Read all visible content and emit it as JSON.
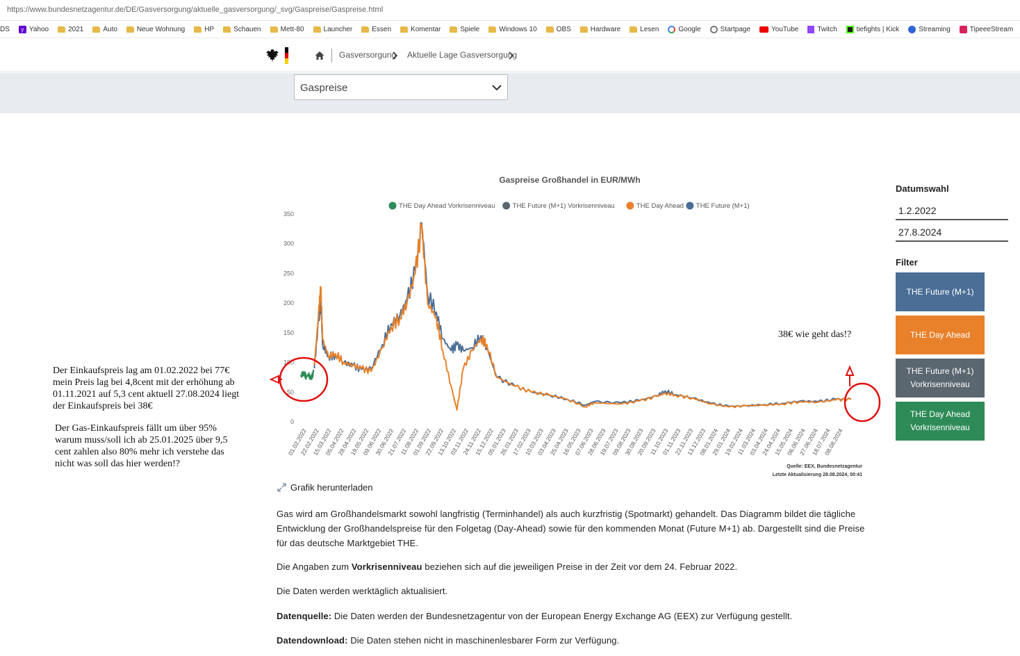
{
  "browser": {
    "url": "https://www.bundesnetzagentur.de/DE/Gasversorgung/aktuelle_gasversorgung/_svg/Gaspreise/Gaspreise.html",
    "bookmarks": [
      {
        "label": "DS",
        "icon": "none"
      },
      {
        "label": "Yahoo",
        "icon": "yahoo"
      },
      {
        "label": "2021",
        "icon": "folder"
      },
      {
        "label": "Auto",
        "icon": "folder"
      },
      {
        "label": "Neue Wohnung",
        "icon": "folder"
      },
      {
        "label": "HP",
        "icon": "folder"
      },
      {
        "label": "Schauen",
        "icon": "folder"
      },
      {
        "label": "Mett-80",
        "icon": "folder"
      },
      {
        "label": "Launcher",
        "icon": "folder"
      },
      {
        "label": "Essen",
        "icon": "folder"
      },
      {
        "label": "Komentar",
        "icon": "folder"
      },
      {
        "label": "Spiele",
        "icon": "folder"
      },
      {
        "label": "Windows 10",
        "icon": "folder"
      },
      {
        "label": "OBS",
        "icon": "folder"
      },
      {
        "label": "Hardware",
        "icon": "folder"
      },
      {
        "label": "Lesen",
        "icon": "folder"
      },
      {
        "label": "Google",
        "icon": "google"
      },
      {
        "label": "Startpage",
        "icon": "search"
      },
      {
        "label": "YouTube",
        "icon": "youtube"
      },
      {
        "label": "Twitch",
        "icon": "twitch"
      },
      {
        "label": "tiefights | Kick",
        "icon": "kick"
      },
      {
        "label": "Streaming",
        "icon": "stream"
      },
      {
        "label": "TipeeeStream",
        "icon": "tipeee"
      }
    ]
  },
  "header": {
    "breadcrumbs": [
      "Gasversorgung",
      "Aktuelle Lage Gasversorgung"
    ],
    "flag_colors": [
      "#000000",
      "#dd0000",
      "#ffce00"
    ]
  },
  "dropdown": {
    "selected": "Gaspreise"
  },
  "chart_data": {
    "type": "line",
    "title": "Gaspreise Großhandel in EUR/MWh",
    "ylim": [
      0,
      350
    ],
    "yticks": [
      0,
      50,
      100,
      150,
      200,
      250,
      300,
      350
    ],
    "x_tick_labels": [
      "01.02.2022",
      "22.02.2022",
      "15.03.2022",
      "05.04.2022",
      "28.04.2022",
      "19.05.2022",
      "09.06.2022",
      "30.06.2022",
      "21.07.2022",
      "11.08.2022",
      "01.09.2022",
      "22.09.2022",
      "13.10.2022",
      "03.11.2022",
      "24.11.2022",
      "15.12.2022",
      "05.01.2023",
      "26.01.2023",
      "17.02.2023",
      "10.03.2023",
      "03.04.2023",
      "25.04.2023",
      "16.05.2023",
      "07.06.2023",
      "28.06.2023",
      "19.07.2023",
      "09.08.2023",
      "30.08.2023",
      "20.09.2023",
      "11.10.2023",
      "01.11.2023",
      "22.11.2023",
      "13.12.2023",
      "08.01.2024",
      "29.01.2024",
      "19.02.2024",
      "11.03.2024",
      "03.04.2024",
      "24.04.2024",
      "15.05.2024",
      "06.06.2024",
      "27.06.2024",
      "18.07.2024",
      "08.08.2024"
    ],
    "x_range": [
      "01.02.2022",
      "27.08.2024"
    ],
    "legend_position": "top",
    "grid": false,
    "series": [
      {
        "name": "THE Day Ahead Vorkrisenniveau",
        "color": "#2e8b57",
        "points": [
          [
            "01.02.2022",
            79
          ],
          [
            "07.02.2022",
            82
          ],
          [
            "10.02.2022",
            75
          ],
          [
            "14.02.2022",
            80
          ],
          [
            "18.02.2022",
            72
          ],
          [
            "23.02.2022",
            84
          ]
        ]
      },
      {
        "name": "THE Future (M+1) Vorkrisenniveau",
        "color": "#5a6670",
        "points": []
      },
      {
        "name": "THE Day Ahead",
        "color": "#e8812a",
        "points": [
          [
            "24.02.2022",
            95
          ],
          [
            "03.03.2022",
            180
          ],
          [
            "07.03.2022",
            227
          ],
          [
            "10.03.2022",
            140
          ],
          [
            "20.03.2022",
            110
          ],
          [
            "01.04.2022",
            115
          ],
          [
            "15.04.2022",
            100
          ],
          [
            "01.05.2022",
            95
          ],
          [
            "15.05.2022",
            90
          ],
          [
            "01.06.2022",
            85
          ],
          [
            "20.06.2022",
            125
          ],
          [
            "05.07.2022",
            160
          ],
          [
            "20.07.2022",
            175
          ],
          [
            "01.08.2022",
            200
          ],
          [
            "15.08.2022",
            250
          ],
          [
            "26.08.2022",
            330
          ],
          [
            "05.09.2022",
            200
          ],
          [
            "20.09.2022",
            175
          ],
          [
            "01.10.2022",
            120
          ],
          [
            "15.10.2022",
            60
          ],
          [
            "25.10.2022",
            20
          ],
          [
            "05.11.2022",
            90
          ],
          [
            "20.11.2022",
            120
          ],
          [
            "05.12.2022",
            140
          ],
          [
            "15.12.2022",
            130
          ],
          [
            "01.01.2023",
            75
          ],
          [
            "01.02.2023",
            60
          ],
          [
            "01.03.2023",
            50
          ],
          [
            "01.04.2023",
            45
          ],
          [
            "01.05.2023",
            38
          ],
          [
            "01.06.2023",
            25
          ],
          [
            "15.06.2023",
            32
          ],
          [
            "01.08.2023",
            30
          ],
          [
            "01.09.2023",
            35
          ],
          [
            "01.10.2023",
            43
          ],
          [
            "15.10.2023",
            48
          ],
          [
            "01.11.2023",
            45
          ],
          [
            "01.12.2023",
            40
          ],
          [
            "01.01.2024",
            30
          ],
          [
            "01.02.2024",
            25
          ],
          [
            "01.03.2024",
            27
          ],
          [
            "01.04.2024",
            28
          ],
          [
            "01.05.2024",
            30
          ],
          [
            "01.06.2024",
            34
          ],
          [
            "01.07.2024",
            33
          ],
          [
            "01.08.2024",
            37
          ],
          [
            "27.08.2024",
            38
          ]
        ]
      },
      {
        "name": "THE Future (M+1)",
        "color": "#4a6e96",
        "points": [
          [
            "24.02.2022",
            90
          ],
          [
            "03.03.2022",
            170
          ],
          [
            "07.03.2022",
            205
          ],
          [
            "10.03.2022",
            130
          ],
          [
            "20.03.2022",
            110
          ],
          [
            "01.04.2022",
            112
          ],
          [
            "15.04.2022",
            100
          ],
          [
            "01.05.2022",
            95
          ],
          [
            "15.05.2022",
            88
          ],
          [
            "01.06.2022",
            90
          ],
          [
            "20.06.2022",
            130
          ],
          [
            "05.07.2022",
            165
          ],
          [
            "20.07.2022",
            180
          ],
          [
            "01.08.2022",
            205
          ],
          [
            "15.08.2022",
            255
          ],
          [
            "26.08.2022",
            335
          ],
          [
            "05.09.2022",
            215
          ],
          [
            "20.09.2022",
            185
          ],
          [
            "01.10.2022",
            140
          ],
          [
            "15.10.2022",
            120
          ],
          [
            "25.10.2022",
            130
          ],
          [
            "05.11.2022",
            120
          ],
          [
            "20.11.2022",
            125
          ],
          [
            "05.12.2022",
            145
          ],
          [
            "15.12.2022",
            125
          ],
          [
            "01.01.2023",
            75
          ],
          [
            "01.02.2023",
            60
          ],
          [
            "01.03.2023",
            50
          ],
          [
            "01.04.2023",
            45
          ],
          [
            "01.05.2023",
            38
          ],
          [
            "01.06.2023",
            28
          ],
          [
            "15.06.2023",
            34
          ],
          [
            "01.08.2023",
            32
          ],
          [
            "01.09.2023",
            36
          ],
          [
            "01.10.2023",
            44
          ],
          [
            "15.10.2023",
            52
          ],
          [
            "01.11.2023",
            46
          ],
          [
            "01.12.2023",
            40
          ],
          [
            "01.01.2024",
            31
          ],
          [
            "01.02.2024",
            26
          ],
          [
            "01.03.2024",
            27
          ],
          [
            "01.04.2024",
            29
          ],
          [
            "01.05.2024",
            31
          ],
          [
            "01.06.2024",
            35
          ],
          [
            "01.07.2024",
            34
          ],
          [
            "01.08.2024",
            38
          ],
          [
            "27.08.2024",
            38
          ]
        ]
      }
    ],
    "source_line1": "Quelle: EEX, Bundesnetzagentur",
    "source_line2": "Letzte Aktualisierung 28.08.2024, 00:41"
  },
  "sidebar": {
    "date_title": "Datumswahl",
    "date_from": "1.2.2022",
    "date_to": "27.8.2024",
    "filter_title": "Filter",
    "filters": [
      {
        "label": "THE Future (M+1)",
        "color": "#4a6e96"
      },
      {
        "label": "THE Day Ahead",
        "color": "#e8812a"
      },
      {
        "label": "THE Future (M+1) Vorkrisenniveau",
        "color": "#5a6670"
      },
      {
        "label": "THE Day Ahead Vorkrisenniveau",
        "color": "#2e8b57"
      }
    ]
  },
  "annotations": {
    "left_text_1": [
      "Der Einkaufspreis lag am 01.02.2022 bei 77€",
      "mein Preis lag bei 4,8cent mit der erhöhung ab",
      "01.11.2021 auf  5,3 cent aktuell 27.08.2024 liegt",
      "der Einkaufspreis bei 38€"
    ],
    "left_text_2": [
      "Der Gas-Einkaufspreis fällt um über 95%",
      "warum muss/soll ich ab 25.01.2025 über 9,5",
      "cent zahlen also 80% mehr ich verstehe das",
      "nicht was soll das hier werden!?"
    ],
    "right_text": "38€ wie geht das!?",
    "marker_color": "#e01010"
  },
  "content": {
    "download_label": "Grafik herunterladen",
    "para1": "Gas wird am Großhandelsmarkt sowohl langfristig (Terminhandel) als auch kurzfristig (Spotmarkt) gehandelt. Das Diagramm bildet die tägliche Entwicklung der Großhandelspreise für den Folgetag (Day-Ahead) sowie für den kommenden Monat (Future M+1) ab. Dargestellt sind die Preise für das deutsche Marktgebiet THE.",
    "para2_pre": "Die Angaben zum ",
    "para2_bold": "Vorkrisenniveau",
    "para2_post": " beziehen sich auf die jeweiligen Preise in der Zeit vor dem 24. Februar 2022.",
    "para3": "Die Daten werden werktäglich aktualisiert.",
    "para4_bold": "Datenquelle:",
    "para4_post": " Die Daten werden der Bundesnetzagentur von der European Energy Exchange AG (EEX) zur Verfügung gestellt.",
    "para5_bold": "Datendownload:",
    "para5_post": " Die Daten stehen nicht in maschinenlesbarer Form zur Verfügung."
  }
}
